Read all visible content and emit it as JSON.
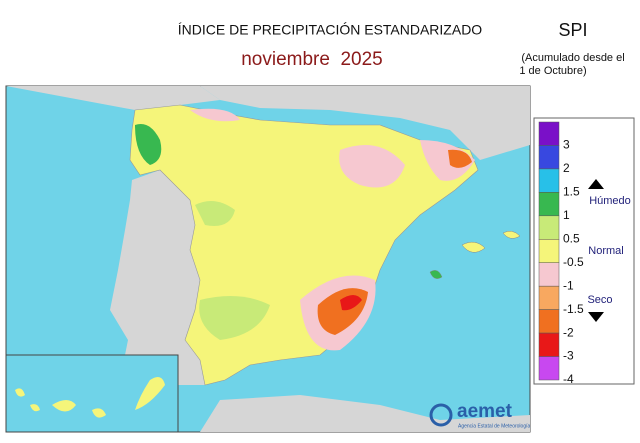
{
  "header": {
    "title": "ÍNDICE DE PRECIPITACIÓN ESTANDARIZADO",
    "period": "noviembre  2025",
    "index": "SPI",
    "note_1": "(Acumulado desde el",
    "note_2": "1 de Octubre)"
  },
  "legend": {
    "ticks": [
      3,
      2,
      1.5,
      1,
      0.5,
      -0.5,
      -1,
      -1.5,
      -2,
      -3,
      -4
    ],
    "colors": [
      "#7a10c8",
      "#3848e0",
      "#28c0e8",
      "#38b850",
      "#c8ea78",
      "#f5f57a",
      "#f6c8d0",
      "#f8a860",
      "#f07020",
      "#e81818",
      "#c848f0"
    ],
    "wet": "Húmedo",
    "normal": "Normal",
    "dry": "Seco"
  },
  "logo": {
    "name": "aemet",
    "agency": "Agencia Estatal de Meteorología"
  }
}
